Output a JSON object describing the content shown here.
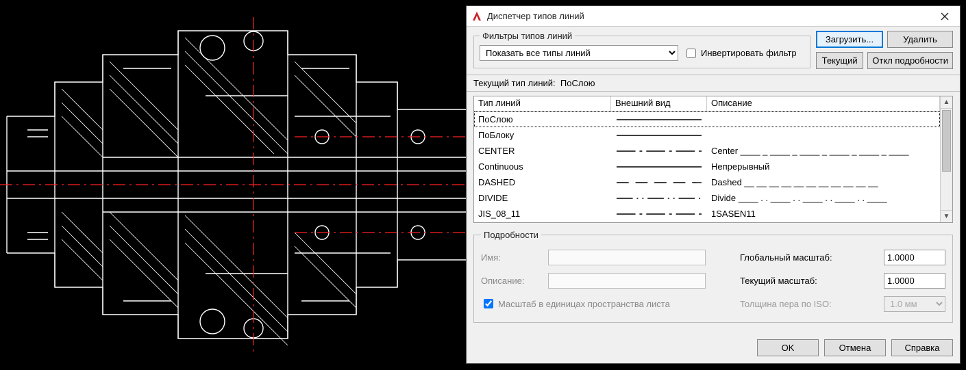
{
  "dialog": {
    "title": "Диспетчер типов линий",
    "app_icon_color": "#cc1f1f"
  },
  "filters": {
    "legend": "Фильтры типов линий",
    "combo_value": "Показать все типы линий",
    "invert_label": "Инвертировать фильтр",
    "invert_checked": false
  },
  "buttons": {
    "load": "Загрузить...",
    "delete": "Удалить",
    "current": "Текущий",
    "toggle_details": "Откл подробности"
  },
  "current_linetype": {
    "label": "Текущий тип линий:",
    "value": "ПоСлою"
  },
  "table": {
    "headers": {
      "name": "Тип линий",
      "appearance": "Внешний вид",
      "description": "Описание"
    },
    "rows": [
      {
        "name": "ПоСлою",
        "pattern": "solid",
        "desc": ""
      },
      {
        "name": "ПоБлоку",
        "pattern": "solid",
        "desc": ""
      },
      {
        "name": "CENTER",
        "pattern": "center",
        "desc": "Center ____ _ ____ _ ____ _ ____ _ ____ _ ____"
      },
      {
        "name": "Continuous",
        "pattern": "solid",
        "desc": "Непрерывный"
      },
      {
        "name": "DASHED",
        "pattern": "dashed",
        "desc": "Dashed __ __ __ __ __ __ __ __ __ __ __"
      },
      {
        "name": "DIVIDE",
        "pattern": "divide",
        "desc": "Divide ____ . . ____ . . ____ . . ____ . . ____"
      },
      {
        "name": "JIS_08_11",
        "pattern": "center",
        "desc": "1SASEN11"
      }
    ],
    "selected_index": 0
  },
  "details": {
    "legend": "Подробности",
    "name_label": "Имя:",
    "name_value": "",
    "desc_label": "Описание:",
    "desc_value": "",
    "paperspace_checked": true,
    "paperspace_label": "Масштаб в единицах пространства листа",
    "global_scale_label": "Глобальный масштаб:",
    "global_scale_value": "1.0000",
    "current_scale_label": "Текущий масштаб:",
    "current_scale_value": "1.0000",
    "iso_pen_label": "Толщина пера по ISO:",
    "iso_pen_value": "1.0 мм"
  },
  "footer": {
    "ok": "OK",
    "cancel": "Отмена",
    "help": "Справка"
  },
  "cad": {
    "line_color": "#ffffff",
    "center_color": "#ff2020",
    "bg": "#000000"
  }
}
